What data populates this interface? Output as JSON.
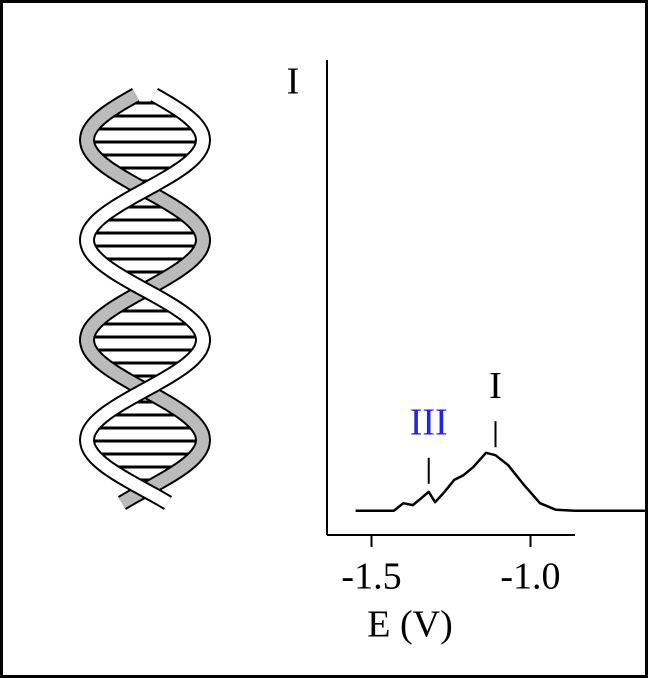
{
  "chart_data": {
    "type": "line",
    "x_label": "E (V)",
    "y_label": "I",
    "x": [
      -1.55,
      -1.43,
      -1.4,
      -1.37,
      -1.35,
      -1.32,
      -1.3,
      -1.27,
      -1.24,
      -1.21,
      -1.18,
      -1.14,
      -1.11,
      -1.07,
      -1.02,
      -0.97,
      -0.92,
      -0.86,
      -0.64
    ],
    "series": [
      {
        "color": "#000000",
        "values": [
          5.1,
          5.1,
          6.7,
          6.3,
          7.4,
          9.1,
          6.9,
          9.1,
          11.6,
          12.6,
          14.3,
          17.3,
          16.8,
          14.7,
          10.5,
          6.7,
          5.3,
          5.1,
          5.1
        ]
      }
    ],
    "xlim": [
      -1.64,
      -0.86
    ],
    "xticks": [
      -1.5,
      {
        "value": -1.0,
        "label": "-1.0"
      }
    ],
    "ylim": [
      0,
      100
    ],
    "annotations": [
      {
        "text": "III",
        "x": -1.32,
        "color": "#2222ee"
      },
      {
        "text": "I",
        "x": -1.11,
        "color": "#000000"
      }
    ]
  }
}
